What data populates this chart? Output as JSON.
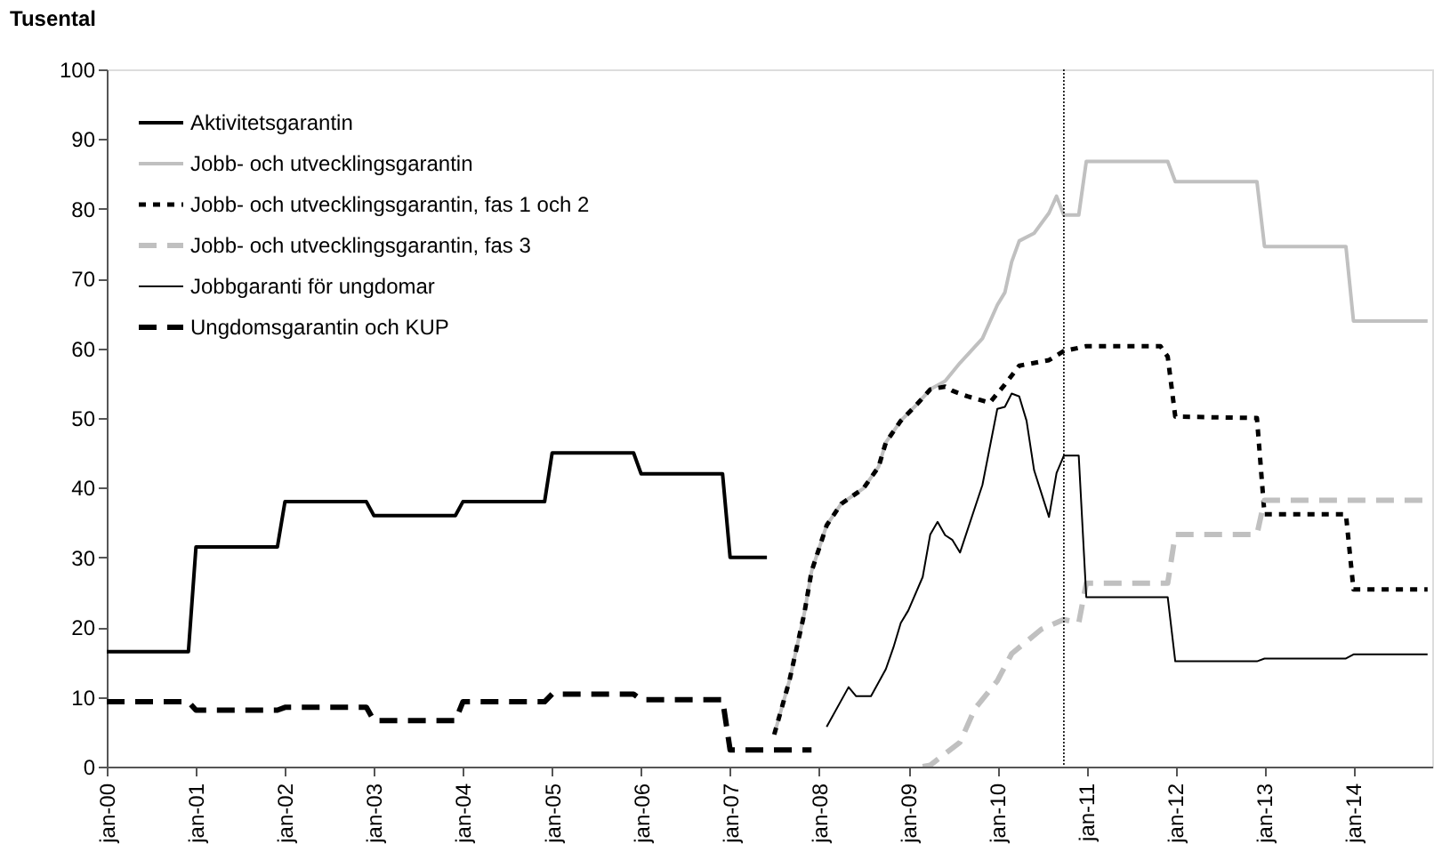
{
  "chart_data": {
    "type": "line",
    "ylabel": "Tusental",
    "xlim": [
      "2000-01",
      "2014-11-20"
    ],
    "ylim": [
      0,
      100
    ],
    "yticks": [
      0,
      10,
      20,
      30,
      40,
      50,
      60,
      70,
      80,
      90,
      100
    ],
    "xticks": [
      {
        "value": "2000-01",
        "label": "jan-00"
      },
      {
        "value": "2001-01",
        "label": "jan-01"
      },
      {
        "value": "2002-01",
        "label": "jan-02"
      },
      {
        "value": "2003-01",
        "label": "jan-03"
      },
      {
        "value": "2004-01",
        "label": "jan-04"
      },
      {
        "value": "2005-01",
        "label": "jan-05"
      },
      {
        "value": "2006-01",
        "label": "jan-06"
      },
      {
        "value": "2007-01",
        "label": "jan-07"
      },
      {
        "value": "2008-01",
        "label": "jan-08"
      },
      {
        "value": "2009-01",
        "label": "jan-09"
      },
      {
        "value": "2010-01",
        "label": "jan-10"
      },
      {
        "value": "2011-01",
        "label": "jan-11"
      },
      {
        "value": "2012-01",
        "label": "jan-12"
      },
      {
        "value": "2013-01",
        "label": "jan-13"
      },
      {
        "value": "2014-01",
        "label": "jan-14"
      }
    ],
    "grid": false,
    "legend": "top left",
    "marker": "none",
    "ref_lines": [
      {
        "axis": "x",
        "value": "2010-10",
        "color": "#000000",
        "line_style": "dotted"
      }
    ],
    "series": [
      {
        "name": "Aktivitetsgarantin",
        "color": "#000000",
        "line_style": "solid",
        "x": [
          "2000-01",
          "2000-12",
          "2001-01",
          "2001-12",
          "2002-01",
          "2002-12",
          "2003-01",
          "2003-12",
          "2004-01",
          "2004-12",
          "2005-01",
          "2005-12",
          "2006-01",
          "2006-12",
          "2007-01",
          "2007-06"
        ],
        "values": [
          16.5,
          16.5,
          31.5,
          31.5,
          38,
          38,
          36,
          36,
          38,
          38,
          45,
          45,
          42,
          42,
          30,
          30
        ]
      },
      {
        "name": "Jobb- och utvecklingsgarantin",
        "color": "#c0c0c0",
        "line_style": "solid",
        "x": [
          "2007-07",
          "2007-09",
          "2007-11",
          "2007-12",
          "2008-02",
          "2008-04",
          "2008-07",
          "2008-09",
          "2008-10",
          "2008-12",
          "2009-02",
          "2009-04",
          "2009-06",
          "2009-08",
          "2009-11",
          "2010-01",
          "2010-02",
          "2010-03",
          "2010-04",
          "2010-06",
          "2010-08",
          "2010-09",
          "2010-10",
          "2010-12",
          "2011-01",
          "2011-12",
          "2012-01",
          "2012-12",
          "2013-01",
          "2013-12",
          "2014-01",
          "2014-11"
        ],
        "values": [
          4.6,
          12.3,
          21.9,
          28,
          34.6,
          37.7,
          39.9,
          43,
          46.5,
          49.6,
          51.8,
          54.1,
          55.3,
          57.9,
          61.4,
          66.2,
          68,
          72.4,
          75.4,
          76.5,
          79.4,
          81.8,
          79.1,
          79.1,
          86.8,
          86.8,
          83.9,
          83.9,
          74.6,
          74.6,
          63.9,
          63.9
        ]
      },
      {
        "name": "Jobb- och utvecklingsgarantin, fas 1 och 2",
        "color": "#000000",
        "line_style": "dotted",
        "x": [
          "2007-07",
          "2007-09",
          "2007-11",
          "2007-12",
          "2008-02",
          "2008-04",
          "2008-07",
          "2008-09",
          "2008-10",
          "2008-12",
          "2009-02",
          "2009-04",
          "2009-06",
          "2009-07",
          "2009-09",
          "2009-12",
          "2010-02",
          "2010-04",
          "2010-08",
          "2010-10",
          "2011-01",
          "2011-11",
          "2011-12",
          "2012-01",
          "2012-12",
          "2013-01",
          "2013-12",
          "2014-01",
          "2014-11"
        ],
        "values": [
          4.6,
          12.3,
          21.9,
          28,
          34.6,
          37.7,
          39.9,
          43,
          46.5,
          49.6,
          51.8,
          54.1,
          54.5,
          53.9,
          53.1,
          52.2,
          54.8,
          57.5,
          58.3,
          59.6,
          60.3,
          60.3,
          58.8,
          50.2,
          50,
          36.2,
          36.2,
          25.4,
          25.4
        ]
      },
      {
        "name": "Jobb- och utvecklingsgarantin, fas 3",
        "color": "#c0c0c0",
        "line_style": "dashed",
        "x": [
          "2009-03",
          "2009-04",
          "2009-08",
          "2009-10",
          "2010-01",
          "2010-03",
          "2010-07",
          "2010-10",
          "2010-12",
          "2011-01",
          "2011-12",
          "2012-01",
          "2012-12",
          "2013-01",
          "2014-11"
        ],
        "values": [
          0,
          0.2,
          3.5,
          8.3,
          12.3,
          16.2,
          19.7,
          21.1,
          20.6,
          26.3,
          26.3,
          33.3,
          33.3,
          38.2,
          38.2
        ]
      },
      {
        "name": "Jobbgaranti för ungdomar",
        "color": "#000000",
        "line_style": "solid",
        "x": [
          "2008-02",
          "2008-05",
          "2008-06",
          "2008-08",
          "2008-10",
          "2008-11",
          "2008-12",
          "2009-01",
          "2009-03",
          "2009-04",
          "2009-05",
          "2009-06",
          "2009-07",
          "2009-08",
          "2009-11",
          "2010-01",
          "2010-02",
          "2010-03",
          "2010-04",
          "2010-05",
          "2010-06",
          "2010-08",
          "2010-09",
          "2010-10",
          "2010-12",
          "2011-01",
          "2011-12",
          "2012-01",
          "2012-12",
          "2013-01",
          "2013-12",
          "2014-01",
          "2014-11"
        ],
        "values": [
          5.7,
          11.4,
          10.1,
          10.1,
          14,
          17.1,
          20.6,
          22.4,
          27.2,
          33.3,
          35.1,
          33.2,
          32.5,
          30.7,
          40.4,
          51.3,
          51.6,
          53.5,
          53.1,
          49.6,
          42.5,
          35.8,
          42.1,
          44.6,
          44.6,
          24.3,
          24.3,
          15.1,
          15.1,
          15.5,
          15.5,
          16.1,
          16.1
        ]
      },
      {
        "name": "Ungdomsgarantin och KUP",
        "color": "#000000",
        "line_style": "dashed",
        "x": [
          "2000-01",
          "2000-12",
          "2001-01",
          "2001-12",
          "2002-01",
          "2002-12",
          "2003-01",
          "2003-12",
          "2004-01",
          "2004-12",
          "2005-01",
          "2005-12",
          "2006-01",
          "2006-12",
          "2007-01",
          "2007-12"
        ],
        "values": [
          9.3,
          9.3,
          8.1,
          8.1,
          8.5,
          8.5,
          6.6,
          6.6,
          9.3,
          9.3,
          10.4,
          10.4,
          9.6,
          9.6,
          2.4,
          2.4
        ]
      }
    ]
  }
}
